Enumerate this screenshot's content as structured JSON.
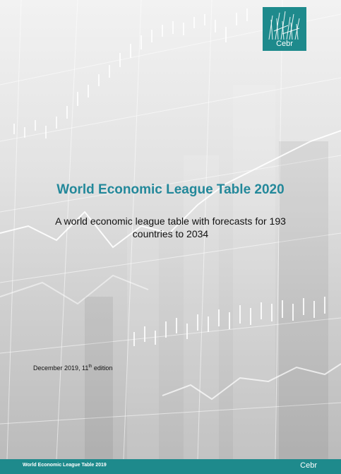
{
  "logo": {
    "text": "Cebr"
  },
  "title": "World Economic League Table 2020",
  "subtitle": "A world economic league table with forecasts for 193 countries to 2034",
  "edition": {
    "date": "December 2019, 11",
    "ordinal": "th",
    "suffix": " edition"
  },
  "footer": {
    "left": "World Economic League Table 2019",
    "right": "Cebr"
  },
  "colors": {
    "brand": "#1e8a8c",
    "title": "#23889a"
  }
}
